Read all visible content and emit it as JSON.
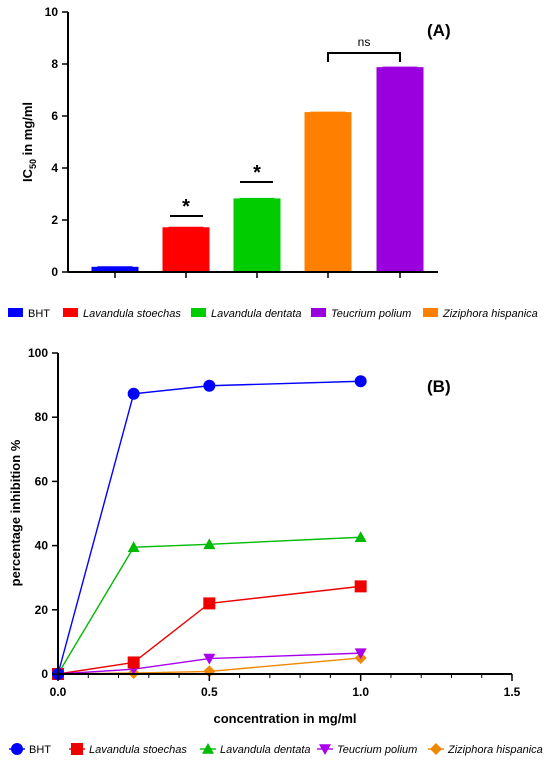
{
  "chart_data": [
    {
      "type": "bar",
      "panel_label": "(A)",
      "ylabel_main": "IC",
      "ylabel_sub": "50",
      "ylabel_rest": " in mg/ml",
      "ylim": [
        0,
        10
      ],
      "yticks": [
        "0",
        "2",
        "4",
        "6",
        "8",
        "10"
      ],
      "bars": [
        {
          "name": "BHT",
          "value": 0.2,
          "color": "#0000ff"
        },
        {
          "name": "Lavandula stoechas",
          "value": 1.72,
          "color": "#ff0000"
        },
        {
          "name": "Lavandula dentata",
          "value": 2.83,
          "color": "#00cc00"
        },
        {
          "name": "Ziziphora hispanica",
          "value": 6.15,
          "color": "#ff8000"
        },
        {
          "name": "Teucrium polium",
          "value": 7.88,
          "color": "#9900dd"
        }
      ],
      "annotations": [
        "*",
        "*",
        "ns"
      ],
      "legend": [
        {
          "name": "BHT",
          "italic": false,
          "color": "#0000ff"
        },
        {
          "name": "Lavandula stoechas",
          "italic": true,
          "color": "#ff0000"
        },
        {
          "name": "Lavandula dentata",
          "italic": true,
          "color": "#00cc00"
        },
        {
          "name": "Teucrium polium",
          "italic": true,
          "color": "#9900dd"
        },
        {
          "name": "Ziziphora hispanica",
          "italic": true,
          "color": "#ff8000"
        }
      ]
    },
    {
      "type": "line",
      "panel_label": "(B)",
      "xlabel": "concentration in mg/ml",
      "ylabel": "percentage inhibition %",
      "xlim": [
        0,
        1.5
      ],
      "ylim": [
        0,
        100
      ],
      "xticks": [
        "0.0",
        "0.5",
        "1.0",
        "1.5"
      ],
      "yticks": [
        "0",
        "20",
        "40",
        "60",
        "80",
        "100"
      ],
      "x": [
        0,
        0.25,
        0.5,
        1.0
      ],
      "series": [
        {
          "name": "BHT",
          "marker": "circle",
          "color": "#0000ff",
          "values": [
            0,
            87.3,
            89.8,
            91.2
          ]
        },
        {
          "name": "Lavandula stoechas",
          "marker": "square",
          "color": "#ee0000",
          "values": [
            0,
            3.6,
            22.0,
            27.3
          ]
        },
        {
          "name": "Lavandula dentata",
          "marker": "triangle",
          "color": "#00bb00",
          "values": [
            0,
            39.5,
            40.4,
            42.6
          ]
        },
        {
          "name": "Teucrium polium",
          "marker": "triangle-down",
          "color": "#aa00ee",
          "values": [
            0,
            1.5,
            4.8,
            6.5
          ]
        },
        {
          "name": "Ziziphora hispanica",
          "marker": "diamond",
          "color": "#ee8800",
          "values": [
            0,
            0.3,
            0.8,
            5.0
          ]
        }
      ],
      "legend": [
        {
          "name": "BHT",
          "italic": false,
          "marker": "circle",
          "color": "#0000ff"
        },
        {
          "name": "Lavandula stoechas",
          "italic": true,
          "marker": "square",
          "color": "#ee0000"
        },
        {
          "name": "Lavandula dentata",
          "italic": true,
          "marker": "triangle",
          "color": "#00bb00"
        },
        {
          "name": "Teucrium polium",
          "italic": true,
          "marker": "triangle-down",
          "color": "#aa00ee"
        },
        {
          "name": "Ziziphora hispanica",
          "italic": true,
          "marker": "diamond",
          "color": "#ee8800"
        }
      ]
    }
  ]
}
